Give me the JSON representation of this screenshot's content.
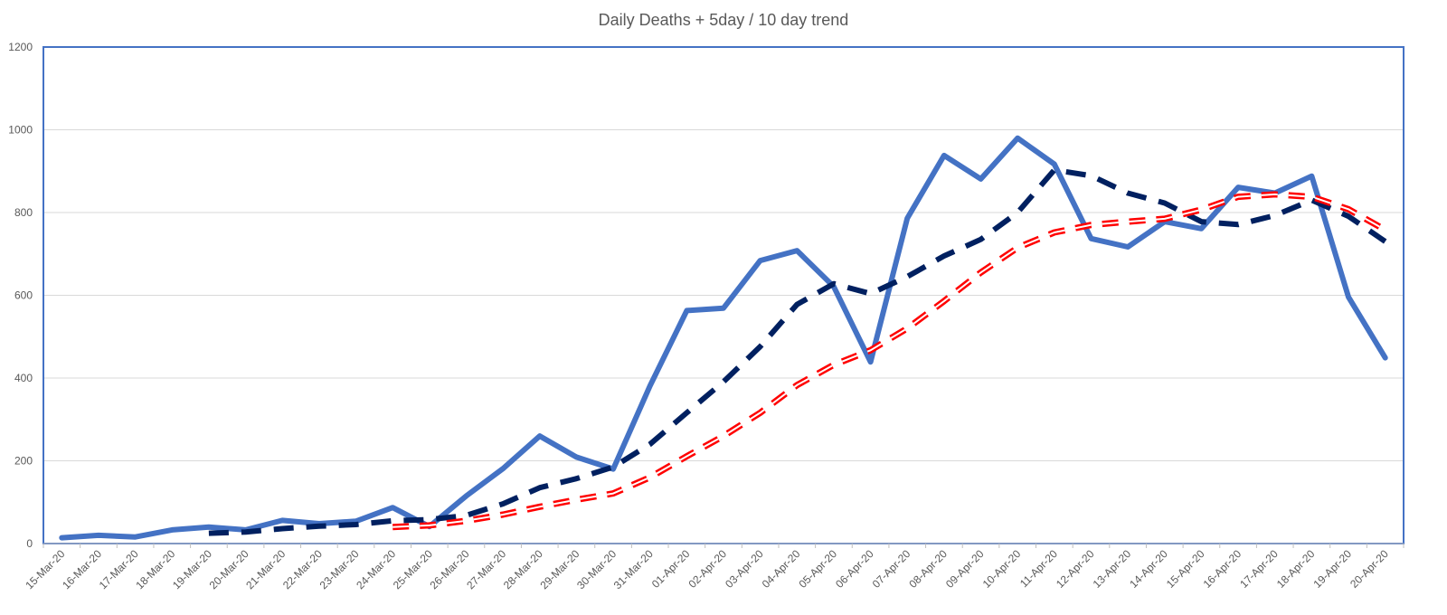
{
  "chart_data": {
    "type": "line",
    "title": "Daily Deaths + 5day / 10 day trend",
    "xlabel": "",
    "ylabel": "",
    "ylim": [
      0,
      1200
    ],
    "yticks": [
      0,
      200,
      400,
      600,
      800,
      1000,
      1200
    ],
    "grid": true,
    "legend": "none",
    "categories": [
      "15-Mar-20",
      "16-Mar-20",
      "17-Mar-20",
      "18-Mar-20",
      "19-Mar-20",
      "20-Mar-20",
      "21-Mar-20",
      "22-Mar-20",
      "23-Mar-20",
      "24-Mar-20",
      "25-Mar-20",
      "26-Mar-20",
      "27-Mar-20",
      "28-Mar-20",
      "29-Mar-20",
      "30-Mar-20",
      "31-Mar-20",
      "01-Apr-20",
      "02-Apr-20",
      "03-Apr-20",
      "04-Apr-20",
      "05-Apr-20",
      "06-Apr-20",
      "07-Apr-20",
      "08-Apr-20",
      "09-Apr-20",
      "10-Apr-20",
      "11-Apr-20",
      "12-Apr-20",
      "13-Apr-20",
      "14-Apr-20",
      "15-Apr-20",
      "16-Apr-20",
      "17-Apr-20",
      "18-Apr-20",
      "19-Apr-20",
      "20-Apr-20"
    ],
    "series": [
      {
        "color": "#4472c4",
        "style": "solid",
        "values": [
          14,
          20,
          16,
          33,
          40,
          33,
          56,
          48,
          54,
          87,
          41,
          115,
          181,
          260,
          209,
          180,
          381,
          563,
          569,
          684,
          708,
          621,
          439,
          786,
          938,
          881,
          980,
          917,
          737,
          717,
          778,
          761,
          861,
          847,
          888,
          596,
          449
        ]
      },
      {
        "color": "#002060",
        "style": "dashed",
        "values": [
          null,
          null,
          null,
          null,
          25,
          28,
          36,
          42,
          46,
          55,
          58,
          68,
          96,
          135,
          157,
          185,
          240,
          316,
          391,
          476,
          578,
          628,
          604,
          645,
          695,
          735,
          800,
          903,
          889,
          847,
          823,
          778,
          771,
          793,
          830,
          791,
          730
        ]
      },
      {
        "color": "#ff0000",
        "style": "double-dashed",
        "values": [
          null,
          null,
          null,
          null,
          null,
          null,
          null,
          null,
          null,
          40,
          44,
          55,
          70,
          89,
          106,
          121,
          160,
          211,
          260,
          316,
          383,
          432,
          467,
          520,
          586,
          655,
          715,
          752,
          770,
          778,
          785,
          807,
          838,
          844,
          838,
          808,
          758
        ]
      }
    ]
  }
}
